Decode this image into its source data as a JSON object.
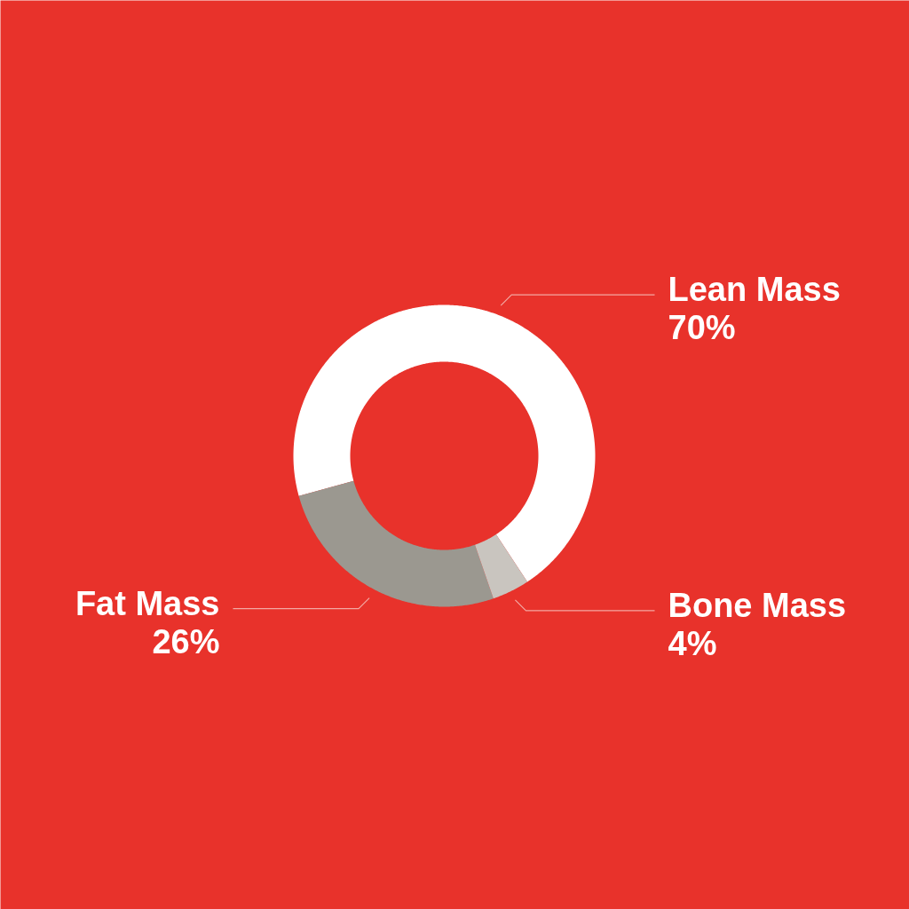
{
  "chart_data": {
    "type": "donut",
    "categories": [
      "Lean Mass",
      "Fat Mass",
      "Bone Mass"
    ],
    "values": [
      70,
      26,
      4
    ],
    "colors": [
      "#ffffff",
      "#9b9890",
      "#c9c5bf"
    ],
    "value_labels": [
      "70%",
      "26%",
      "4%"
    ]
  }
}
